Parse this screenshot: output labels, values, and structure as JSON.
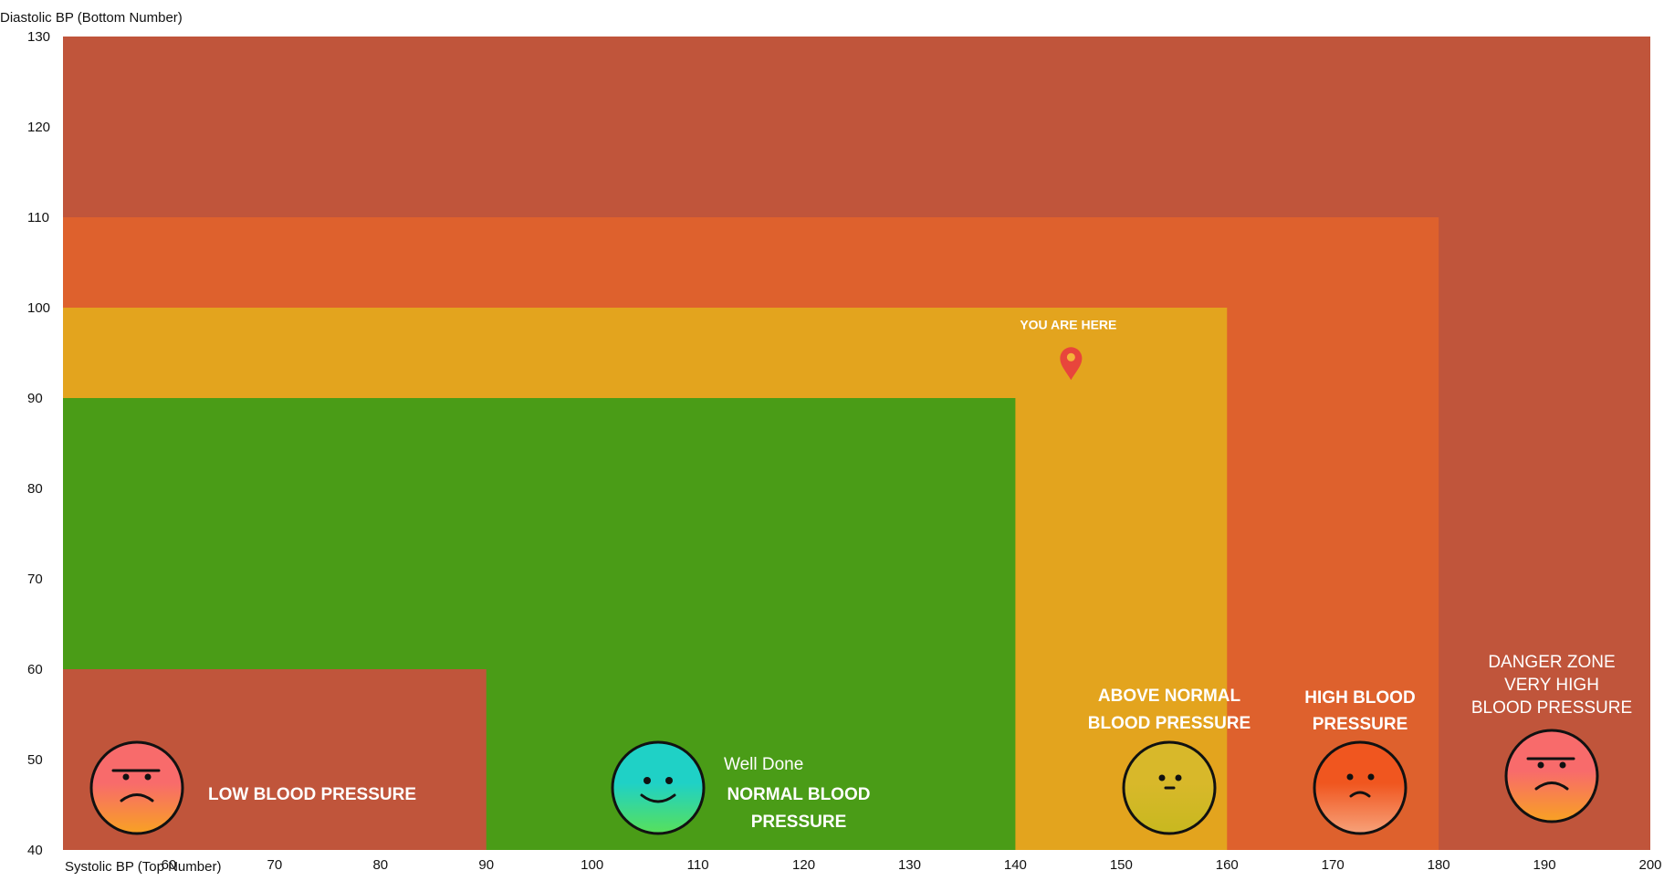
{
  "chart_data": {
    "type": "heatmap",
    "xlabel": "Systolic BP (Top Number)",
    "ylabel": "Diastolic BP (Bottom Number)",
    "xlim": [
      50,
      200
    ],
    "ylim": [
      40,
      130
    ],
    "x_ticks": [
      "60",
      "70",
      "80",
      "90",
      "100",
      "110",
      "120",
      "130",
      "140",
      "150",
      "160",
      "170",
      "180",
      "190",
      "200"
    ],
    "y_ticks": [
      "40",
      "50",
      "60",
      "70",
      "80",
      "90",
      "100",
      "110",
      "120",
      "130"
    ],
    "zones": [
      {
        "id": "danger",
        "color": "#c0553b",
        "x": [
          50,
          200
        ],
        "y": [
          40,
          130
        ]
      },
      {
        "id": "high",
        "color": "#de612d",
        "x": [
          50,
          180
        ],
        "y": [
          40,
          110
        ]
      },
      {
        "id": "above",
        "color": "#e3a41e",
        "x": [
          50,
          160
        ],
        "y": [
          40,
          100
        ]
      },
      {
        "id": "normal",
        "color": "#4a9c17",
        "x": [
          50,
          140
        ],
        "y": [
          40,
          90
        ]
      },
      {
        "id": "low",
        "color": "#c0553b",
        "x": [
          50,
          90
        ],
        "y": [
          40,
          60
        ]
      }
    ],
    "marker": {
      "label": "YOU ARE HERE",
      "x": 145,
      "y": 93,
      "color": "#e8453c"
    }
  },
  "labels": {
    "low": [
      "LOW BLOOD PRESSURE"
    ],
    "normal_sub": "Well Done",
    "normal": [
      "NORMAL BLOOD",
      "PRESSURE"
    ],
    "above": [
      "ABOVE NORMAL",
      "BLOOD PRESSURE"
    ],
    "high": [
      "HIGH BLOOD",
      "PRESSURE"
    ],
    "danger": [
      "DANGER ZONE",
      "VERY HIGH",
      "BLOOD PRESSURE"
    ]
  },
  "faces": [
    {
      "zone": "low",
      "mood": "angry",
      "colors": [
        "#f86b6b",
        "#f8a123"
      ]
    },
    {
      "zone": "normal",
      "mood": "happy",
      "colors": [
        "#1fd1c6",
        "#58e05a"
      ]
    },
    {
      "zone": "above",
      "mood": "neutral",
      "colors": [
        "#d8b82a",
        "#c8b81f"
      ]
    },
    {
      "zone": "high",
      "mood": "sad",
      "colors": [
        "#f0561f",
        "#f7a27a"
      ]
    },
    {
      "zone": "danger",
      "mood": "angry",
      "colors": [
        "#f86b6b",
        "#f8a123"
      ]
    }
  ]
}
